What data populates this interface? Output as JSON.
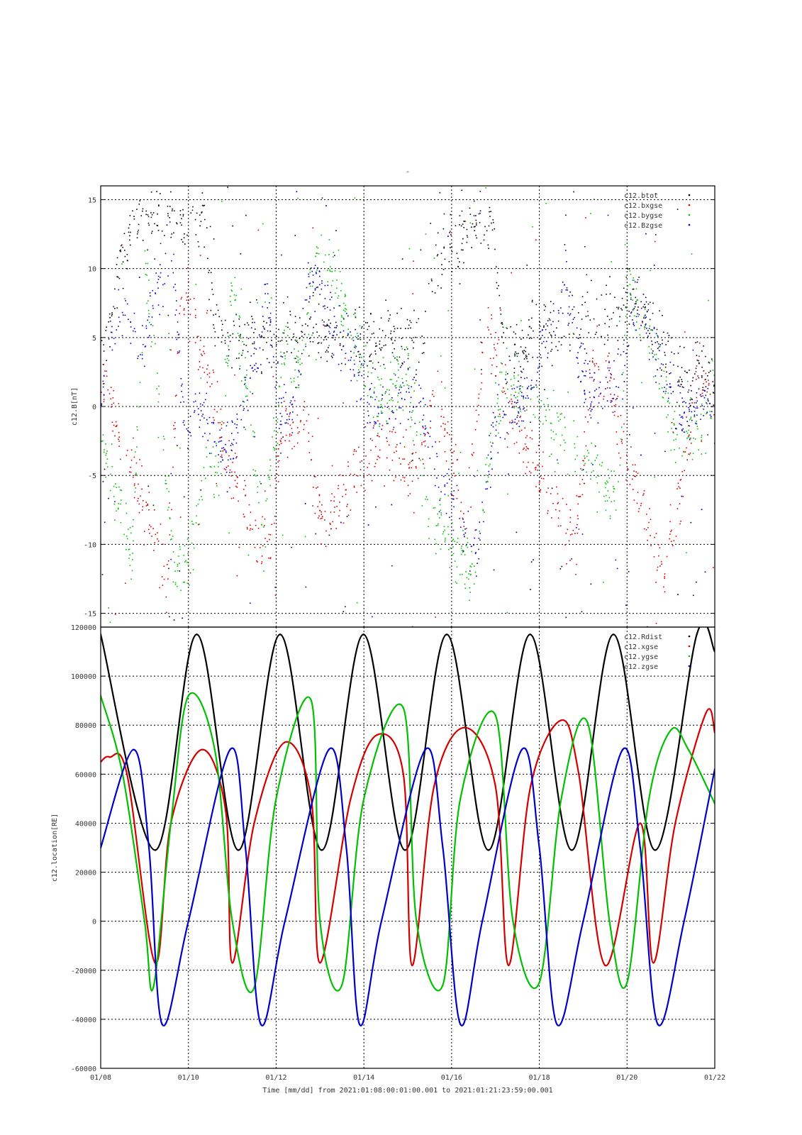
{
  "top_mark": "-",
  "x_axis": {
    "ticks": [
      "01/08",
      "01/10",
      "01/12",
      "01/14",
      "01/16",
      "01/18",
      "01/20",
      "01/22"
    ],
    "label": "Time [mm/dd]  from 2021:01:08:00:01:00.001  to  2021:01:21:23:59:00.001"
  },
  "chart_data": [
    {
      "type": "scatter",
      "ylabel": "c12.B[nT]",
      "ylim": [
        -16,
        16
      ],
      "yticks": [
        15,
        10,
        5,
        0,
        -5,
        -10,
        -15
      ],
      "x_range_days": [
        0,
        14
      ],
      "grid": true,
      "legend_placement": "top-right",
      "series": [
        {
          "name": "c12.btot",
          "color": "#000000",
          "x": [
            0.0,
            0.3,
            0.6,
            0.8,
            1.7,
            2.0,
            2.3,
            2.6,
            2.8,
            4.0,
            4.4,
            4.7,
            6.3,
            6.7,
            7.3,
            7.6,
            8.6,
            8.9,
            9.2,
            11.1,
            11.5,
            11.9,
            12.1,
            13.2,
            13.6,
            14.0
          ],
          "y": [
            3.2,
            7.5,
            12.0,
            14.0,
            13.5,
            13.0,
            14.0,
            5.8,
            5.2,
            5.0,
            5.5,
            6.0,
            4.5,
            5.0,
            4.2,
            10.0,
            14.0,
            13.0,
            3.5,
            7.0,
            6.5,
            7.5,
            8.5,
            2.0,
            2.5,
            2.2
          ]
        },
        {
          "name": "c12.bxgse",
          "color": "#d40000",
          "x": [
            0.1,
            0.4,
            0.7,
            1.1,
            1.5,
            1.8,
            2.0,
            2.4,
            2.9,
            3.8,
            4.1,
            4.6,
            5.0,
            6.4,
            6.8,
            7.2,
            7.6,
            8.3,
            8.8,
            9.2,
            10.8,
            11.2,
            11.6,
            12.0,
            12.8,
            13.2,
            13.6,
            14.0
          ],
          "y": [
            2.0,
            -2.0,
            -4.5,
            -8.0,
            -13.0,
            7.0,
            8.0,
            3.0,
            -4.0,
            -11.0,
            -2.0,
            -1.0,
            -8.0,
            -2.5,
            -4.0,
            -4.8,
            1.5,
            -8.0,
            6.0,
            0.5,
            -10.0,
            3.0,
            2.0,
            -4.0,
            -12.0,
            -6.5,
            2.0,
            0.0
          ]
        },
        {
          "name": "c12.bygse",
          "color": "#00c000",
          "x": [
            0.1,
            0.4,
            0.7,
            1.0,
            1.7,
            2.0,
            2.4,
            2.7,
            3.0,
            3.7,
            4.2,
            4.5,
            5.0,
            6.3,
            6.7,
            7.0,
            7.5,
            8.5,
            8.9,
            9.2,
            9.5,
            11.0,
            11.4,
            11.8,
            12.0,
            13.0,
            13.3,
            13.7,
            14.0
          ],
          "y": [
            -2.5,
            -7.0,
            -11.0,
            10.0,
            -12.0,
            -11.0,
            -4.5,
            -5.0,
            10.0,
            -10.0,
            5.0,
            3.0,
            12.0,
            0.0,
            1.5,
            2.5,
            -8.0,
            -12.0,
            -2.0,
            1.5,
            2.0,
            -4.0,
            -5.5,
            -6.5,
            10.0,
            -1.0,
            -2.5,
            -1.5,
            1.5
          ]
        },
        {
          "name": "c12.Bzgse",
          "color": "#0000c8",
          "x": [
            0.0,
            0.3,
            0.6,
            0.9,
            1.6,
            1.9,
            2.2,
            2.6,
            2.9,
            3.8,
            4.1,
            4.4,
            4.8,
            6.2,
            6.5,
            6.9,
            7.3,
            7.7,
            8.6,
            9.0,
            9.3,
            9.6,
            10.6,
            11.0,
            11.4,
            11.9,
            12.2,
            13.1,
            13.5,
            13.8,
            14.0
          ],
          "y": [
            1.0,
            6.0,
            7.0,
            4.0,
            12.0,
            -2.0,
            0.5,
            -2.0,
            -3.5,
            8.0,
            -1.0,
            0.5,
            10.0,
            0.0,
            -0.5,
            1.5,
            0.0,
            -5.0,
            -10.0,
            -1.0,
            -0.5,
            0.5,
            9.0,
            2.0,
            0.5,
            3.0,
            8.0,
            0.0,
            -0.5,
            -0.5,
            -1.5
          ]
        }
      ]
    },
    {
      "type": "line",
      "ylabel": "c12.location[RE]",
      "ylim": [
        -60000,
        120000
      ],
      "yticks": [
        120000,
        100000,
        80000,
        60000,
        40000,
        20000,
        0,
        -20000,
        -40000,
        -60000
      ],
      "x_range_days": [
        0,
        14
      ],
      "grid": true,
      "legend_placement": "top-right",
      "series": [
        {
          "name": "c12.Rdist",
          "color": "#000000",
          "x": [
            0.0,
            1.24,
            2.19,
            3.14,
            4.09,
            5.04,
            5.99,
            6.94,
            7.89,
            8.84,
            9.79,
            10.74,
            11.69,
            12.64,
            13.59,
            14.0
          ],
          "y": [
            117000,
            29000,
            117000,
            29000,
            117000,
            29000,
            117000,
            29000,
            117000,
            29000,
            117000,
            29000,
            117000,
            29000,
            117000,
            110000
          ]
        },
        {
          "name": "c12.xgse",
          "color": "#d40000",
          "x": [
            0.0,
            0.2,
            0.6,
            1.24,
            1.6,
            2.3,
            2.85,
            3.0,
            3.5,
            4.2,
            4.8,
            5.0,
            5.7,
            6.3,
            6.9,
            7.1,
            7.6,
            8.3,
            9.0,
            9.3,
            9.8,
            10.5,
            10.9,
            11.5,
            12.3,
            12.6,
            13.1,
            13.8,
            14.0
          ],
          "y": [
            65000,
            67000,
            60000,
            -17000,
            40000,
            70000,
            45000,
            -17000,
            40000,
            73000,
            50000,
            -17000,
            50000,
            76000,
            60000,
            -18000,
            55000,
            79000,
            55000,
            -18000,
            55000,
            82000,
            60000,
            -18000,
            40000,
            -17000,
            40000,
            85000,
            77000
          ]
        },
        {
          "name": "c12.ygse",
          "color": "#00c000",
          "x": [
            0.0,
            0.5,
            1.0,
            1.2,
            1.6,
            2.0,
            2.6,
            3.0,
            3.5,
            4.0,
            4.8,
            5.0,
            5.5,
            6.0,
            6.9,
            7.2,
            7.8,
            8.2,
            9.0,
            9.4,
            10.0,
            10.5,
            11.1,
            11.6,
            12.0,
            12.5,
            13.0,
            13.4,
            14.0
          ],
          "y": [
            92000,
            60000,
            0,
            -27000,
            40000,
            92000,
            70000,
            0,
            -27000,
            50000,
            90000,
            0,
            -26000,
            50000,
            87000,
            0,
            -26000,
            50000,
            84000,
            0,
            -25000,
            50000,
            81000,
            0,
            -25000,
            50000,
            78000,
            70000,
            48000
          ]
        },
        {
          "name": "c12.zgse",
          "color": "#0000c8",
          "x": [
            0.0,
            0.75,
            1.1,
            1.4,
            2.0,
            2.95,
            3.3,
            3.65,
            4.2,
            5.2,
            5.6,
            5.9,
            6.4,
            7.4,
            7.8,
            8.2,
            8.7,
            9.6,
            10.0,
            10.4,
            11.0,
            11.9,
            12.3,
            12.7,
            13.3,
            14.0
          ],
          "y": [
            30000,
            70000,
            30000,
            -42000,
            0,
            70000,
            30000,
            -42000,
            0,
            70000,
            30000,
            -42000,
            0,
            70000,
            30000,
            -42000,
            0,
            70000,
            30000,
            -42000,
            0,
            70000,
            30000,
            -42000,
            0,
            62000
          ]
        }
      ]
    }
  ]
}
